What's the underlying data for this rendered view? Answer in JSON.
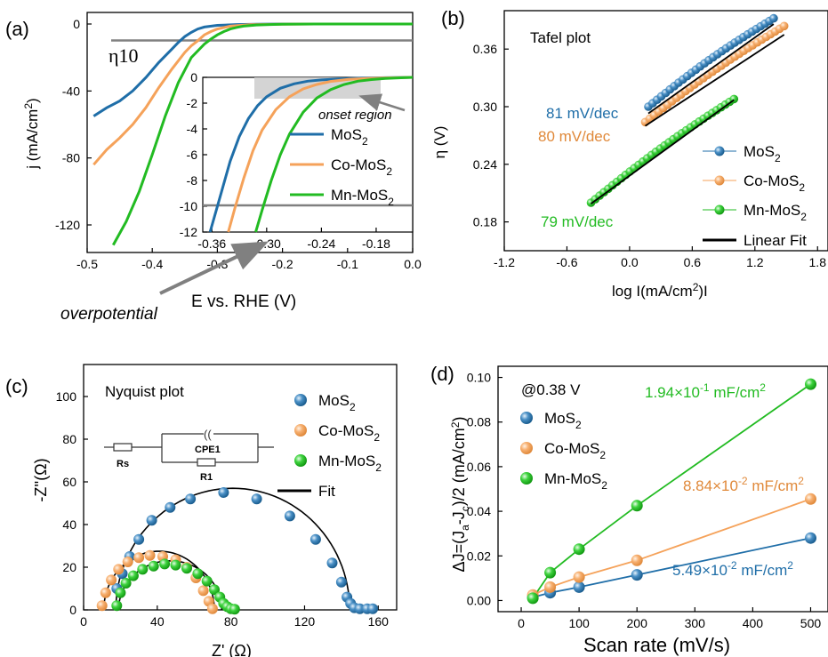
{
  "colors": {
    "mos2": "#1f6ea8",
    "co": "#f5a25a",
    "mn": "#22bb22",
    "fit": "#000000",
    "ref": "#808080",
    "onset": "#cccccc"
  },
  "panel_a": {
    "label": "(a)",
    "xlabel": "E vs. RHE (V)",
    "ylabel_pre": "j (mA/cm",
    "ylabel_sup": "2",
    "ylabel_post": ")",
    "eta10": "η10",
    "overpotential": "overpotential",
    "inset_onset": "onset region",
    "legend": [
      {
        "pre": "MoS",
        "sub": "2"
      },
      {
        "pre": "Co-MoS",
        "sub": "2"
      },
      {
        "pre": "Mn-MoS",
        "sub": "2"
      }
    ],
    "xticks": [
      "-0.5",
      "-0.4",
      "-0.3",
      "-0.2",
      "-0.1",
      "0.0"
    ],
    "yticks": [
      "0",
      "-40",
      "-80",
      "-120"
    ],
    "inset_xticks": [
      "-0.36",
      "-0.30",
      "-0.24",
      "-0.18"
    ],
    "inset_yticks": [
      "0",
      "-2",
      "-4",
      "-6",
      "-8",
      "-10",
      "-12"
    ]
  },
  "panel_b": {
    "label": "(b)",
    "title": "Tafel plot",
    "xlabel_pre": "log I(mA/cm",
    "xlabel_sup": "2",
    "xlabel_post": ")I",
    "ylabel": "η (V)",
    "slopes": [
      "81 mV/dec",
      "80 mV/dec",
      "79 mV/dec"
    ],
    "legend": [
      {
        "pre": "MoS",
        "sub": "2"
      },
      {
        "pre": "Co-MoS",
        "sub": "2"
      },
      {
        "pre": "Mn-MoS",
        "sub": "2"
      },
      {
        "pre": "Linear Fit",
        "sub": ""
      }
    ],
    "xticks": [
      "-1.2",
      "-0.6",
      "0.0",
      "0.6",
      "1.2",
      "1.8"
    ],
    "yticks": [
      "0.18",
      "0.24",
      "0.30",
      "0.36"
    ]
  },
  "panel_c": {
    "label": "(c)",
    "title": "Nyquist plot",
    "xlabel": "Z' (Ω)",
    "ylabel": "-Z''(Ω)",
    "circuit": {
      "rs": "Rs",
      "cpe": "CPE1",
      "r1": "R1"
    },
    "legend": [
      {
        "pre": "MoS",
        "sub": "2"
      },
      {
        "pre": "Co-MoS",
        "sub": "2"
      },
      {
        "pre": "Mn-MoS",
        "sub": "2"
      },
      {
        "pre": "Fit",
        "sub": ""
      }
    ],
    "xticks": [
      "0",
      "40",
      "80",
      "120",
      "160"
    ],
    "yticks": [
      "0",
      "20",
      "40",
      "60",
      "80",
      "100"
    ]
  },
  "panel_d": {
    "label": "(d)",
    "condition": "@0.38 V",
    "xlabel": "Scan rate (mV/s)",
    "ylabel": "ΔJ=(Ja-Jc)/2 (mA/cm2)",
    "capacitances": [
      "1.94×10-1 mF/cm2",
      "8.84×10-2 mF/cm2",
      "5.49×10-2 mF/cm2"
    ],
    "legend": [
      {
        "pre": "MoS",
        "sub": "2"
      },
      {
        "pre": "Co-MoS",
        "sub": "2"
      },
      {
        "pre": "Mn-MoS",
        "sub": "2"
      }
    ],
    "xticks": [
      "0",
      "100",
      "200",
      "300",
      "400",
      "500"
    ],
    "yticks": [
      "0.00",
      "0.02",
      "0.04",
      "0.06",
      "0.08",
      "0.10"
    ]
  },
  "chart_data": [
    {
      "type": "line",
      "title": "",
      "xlabel": "E vs. RHE (V)",
      "ylabel": "j (mA/cm2)",
      "xlim": [
        -0.5,
        0.0
      ],
      "ylim": [
        -140,
        5
      ],
      "reference_line": {
        "label": "η10",
        "y": -10
      },
      "series": [
        {
          "name": "MoS2",
          "x": [
            -0.49,
            -0.47,
            -0.45,
            -0.43,
            -0.41,
            -0.39,
            -0.37,
            -0.36,
            -0.35,
            -0.34,
            -0.33,
            -0.32,
            -0.3,
            -0.27,
            -0.24,
            -0.2,
            -0.15,
            -0.1,
            0.0
          ],
          "y": [
            -55,
            -50,
            -46,
            -40,
            -32,
            -23,
            -15,
            -11,
            -7.5,
            -5,
            -3,
            -1.8,
            -0.8,
            -0.3,
            -0.1,
            0,
            0,
            0,
            0
          ]
        },
        {
          "name": "Co-MoS2",
          "x": [
            -0.49,
            -0.47,
            -0.45,
            -0.43,
            -0.41,
            -0.39,
            -0.37,
            -0.35,
            -0.34,
            -0.33,
            -0.32,
            -0.31,
            -0.3,
            -0.28,
            -0.25,
            -0.2,
            -0.15,
            -0.1,
            0.0
          ],
          "y": [
            -84,
            -75,
            -68,
            -60,
            -50,
            -38,
            -27,
            -17,
            -13,
            -10,
            -6.5,
            -4.5,
            -3,
            -1.3,
            -0.4,
            -0.1,
            0,
            0,
            0
          ]
        },
        {
          "name": "Mn-MoS2",
          "x": [
            -0.46,
            -0.44,
            -0.42,
            -0.4,
            -0.38,
            -0.36,
            -0.34,
            -0.32,
            -0.31,
            -0.3,
            -0.29,
            -0.28,
            -0.27,
            -0.26,
            -0.24,
            -0.22,
            -0.2,
            -0.15,
            -0.1,
            0.0
          ],
          "y": [
            -132,
            -118,
            -100,
            -78,
            -55,
            -35,
            -20,
            -12,
            -9,
            -6.5,
            -4.5,
            -3,
            -2,
            -1.3,
            -0.6,
            -0.3,
            -0.1,
            0,
            0,
            0
          ]
        }
      ]
    },
    {
      "type": "line",
      "title": "onset region",
      "xlim": [
        -0.37,
        -0.14
      ],
      "ylim": [
        -12,
        0
      ],
      "reference_line": {
        "y": -10
      },
      "series": [
        {
          "name": "MoS2",
          "x": [
            -0.362,
            -0.352,
            -0.34,
            -0.33,
            -0.32,
            -0.31,
            -0.3,
            -0.285,
            -0.27,
            -0.255,
            -0.24,
            -0.22,
            -0.2,
            -0.17,
            -0.14
          ],
          "y": [
            -12,
            -9.5,
            -6.5,
            -4.6,
            -3.2,
            -2.2,
            -1.5,
            -0.85,
            -0.5,
            -0.3,
            -0.2,
            -0.12,
            -0.07,
            -0.03,
            0
          ]
        },
        {
          "name": "Co-MoS2",
          "x": [
            -0.342,
            -0.335,
            -0.325,
            -0.315,
            -0.305,
            -0.29,
            -0.275,
            -0.26,
            -0.245,
            -0.23,
            -0.21,
            -0.19,
            -0.17,
            -0.14
          ],
          "y": [
            -12,
            -10.2,
            -7.8,
            -5.7,
            -4.1,
            -2.5,
            -1.5,
            -0.9,
            -0.55,
            -0.32,
            -0.16,
            -0.08,
            -0.04,
            0
          ]
        },
        {
          "name": "Mn-MoS2",
          "x": [
            -0.312,
            -0.305,
            -0.295,
            -0.285,
            -0.275,
            -0.26,
            -0.245,
            -0.23,
            -0.215,
            -0.2,
            -0.185,
            -0.17,
            -0.15,
            -0.14
          ],
          "y": [
            -12,
            -10.3,
            -8,
            -6,
            -4.4,
            -2.7,
            -1.6,
            -0.95,
            -0.55,
            -0.3,
            -0.17,
            -0.08,
            -0.03,
            0
          ]
        }
      ]
    },
    {
      "type": "scatter",
      "title": "Tafel plot",
      "xlabel": "log I(mA/cm2)I",
      "ylabel": "η (V)",
      "xlim": [
        -1.2,
        1.9
      ],
      "ylim": [
        0.15,
        0.4
      ],
      "series": [
        {
          "name": "MoS2",
          "x_range": [
            0.18,
            1.38
          ],
          "y_range": [
            0.3,
            0.392
          ],
          "n_points": 30,
          "slope_label": "81 mV/dec"
        },
        {
          "name": "Co-MoS2",
          "x_range": [
            0.15,
            1.48
          ],
          "y_range": [
            0.284,
            0.384
          ],
          "n_points": 32,
          "slope_label": "80 mV/dec"
        },
        {
          "name": "Mn-MoS2",
          "x_range": [
            -0.37,
            1.0
          ],
          "y_range": [
            0.2,
            0.308
          ],
          "n_points": 34,
          "slope_label": "79 mV/dec"
        }
      ],
      "fits": [
        {
          "name": "Linear Fit",
          "x": [
            0.18,
            1.38
          ],
          "y": [
            0.293,
            0.386
          ]
        },
        {
          "name": "Linear Fit",
          "x": [
            0.15,
            1.48
          ],
          "y": [
            0.28,
            0.375
          ]
        },
        {
          "name": "Linear Fit",
          "x": [
            -0.37,
            1.0
          ],
          "y": [
            0.199,
            0.307
          ]
        }
      ]
    },
    {
      "type": "scatter",
      "title": "Nyquist plot",
      "xlabel": "Z' (Ω)",
      "ylabel": "-Z''(Ω)",
      "xlim": [
        0,
        170
      ],
      "ylim": [
        0,
        115
      ],
      "series": [
        {
          "name": "MoS2",
          "x": [
            18,
            21,
            25,
            30,
            37,
            47,
            58,
            76,
            94,
            112,
            126,
            135,
            140,
            143,
            145,
            147,
            150,
            154,
            157
          ],
          "y": [
            10,
            17,
            25,
            33,
            42,
            48,
            52,
            55,
            52,
            44,
            33,
            22,
            13,
            6,
            3,
            1,
            0.5,
            0.5,
            0.5
          ]
        },
        {
          "name": "Co-MoS2",
          "x": [
            10,
            12,
            15,
            19,
            24,
            30,
            36,
            43,
            50,
            56,
            61,
            65,
            68,
            70
          ],
          "y": [
            2,
            8,
            14,
            19,
            22.5,
            24.5,
            25.5,
            25,
            23.5,
            20,
            15,
            9,
            4,
            0.5
          ]
        },
        {
          "name": "Mn-MoS2",
          "x": [
            18,
            20,
            23,
            27,
            32,
            38,
            44,
            50,
            56,
            62,
            67,
            71,
            74,
            76,
            78,
            80,
            82
          ],
          "y": [
            2,
            8,
            12.5,
            16,
            19,
            20.5,
            21.5,
            21,
            19.5,
            17,
            13.5,
            9.5,
            6,
            3,
            1.5,
            0.5,
            0.3
          ]
        }
      ],
      "fits": [
        {
          "name": "Fit",
          "center": 81,
          "radius": 63.5
        },
        {
          "name": "Fit",
          "center": 41,
          "radius": 30
        },
        {
          "name": "Fit",
          "center": 47,
          "radius": 28
        }
      ]
    },
    {
      "type": "scatter",
      "title": "@0.38 V",
      "xlabel": "Scan rate (mV/s)",
      "ylabel": "ΔJ=(Ja-Jc)/2 (mA/cm2)",
      "xlim": [
        -40,
        530
      ],
      "ylim": [
        -0.005,
        0.105
      ],
      "x": [
        20,
        50,
        100,
        200,
        500
      ],
      "series": [
        {
          "name": "MoS2",
          "values": [
            0.0015,
            0.0035,
            0.006,
            0.0115,
            0.028
          ],
          "fit_label": "5.49×10-2 mF/cm2"
        },
        {
          "name": "Co-MoS2",
          "values": [
            0.0025,
            0.006,
            0.0105,
            0.018,
            0.0455
          ],
          "fit_label": "8.84×10-2 mF/cm2"
        },
        {
          "name": "Mn-MoS2",
          "values": [
            0.001,
            0.0125,
            0.023,
            0.0425,
            0.097
          ],
          "fit_label": "1.94×10-1 mF/cm2"
        }
      ]
    }
  ]
}
